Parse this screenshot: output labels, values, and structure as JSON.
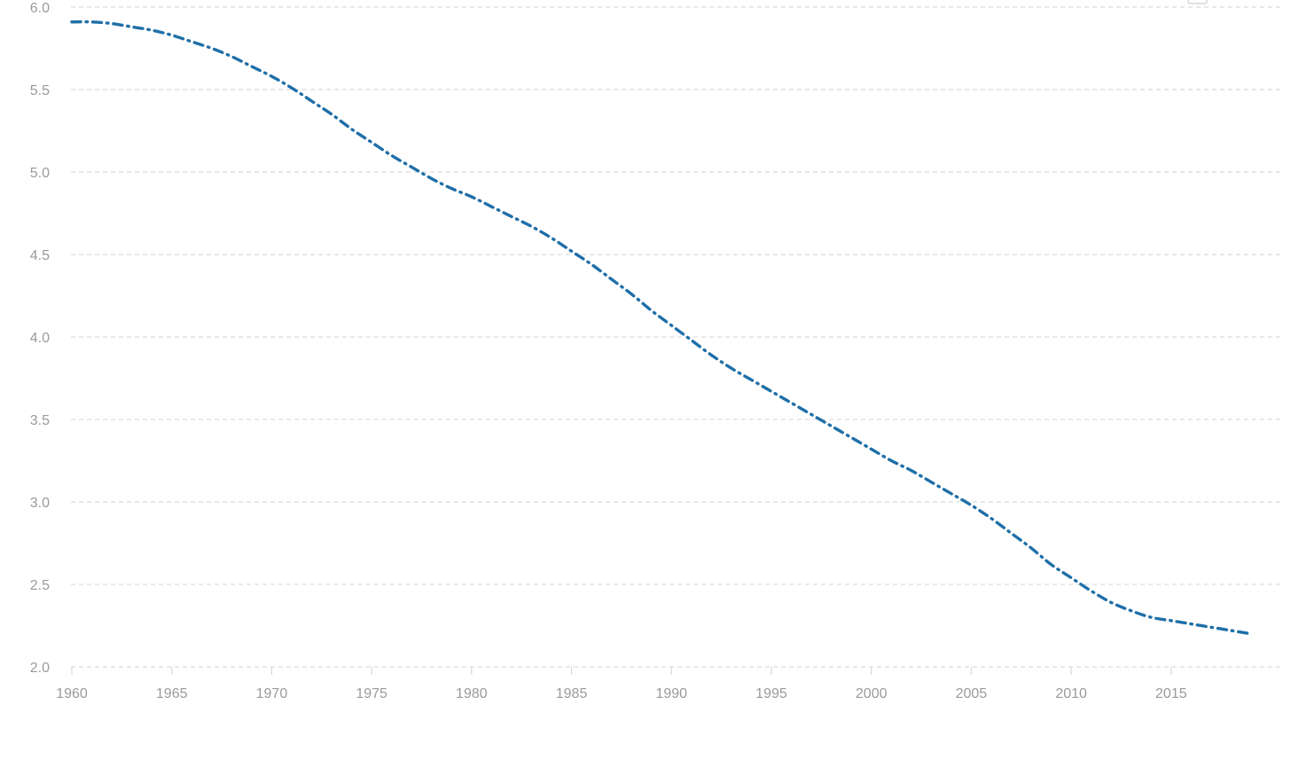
{
  "chart_data": {
    "type": "line",
    "title": "",
    "xlabel": "",
    "ylabel": "",
    "xlim": [
      1960,
      2020
    ],
    "ylim": [
      2.0,
      6.0
    ],
    "grid": true,
    "colors": {
      "series": "#1f6fa8",
      "grid": "#dcdcdc",
      "tick_label": "#9a9a9a"
    },
    "y_ticks": [
      "2.0",
      "2.5",
      "3.0",
      "3.5",
      "4.0",
      "4.5",
      "5.0",
      "5.5",
      "6.0"
    ],
    "x_ticks": [
      "1960",
      "1965",
      "1970",
      "1975",
      "1980",
      "1985",
      "1990",
      "1995",
      "2000",
      "2005",
      "2010",
      "2015"
    ],
    "series": [
      {
        "x": [
          1960,
          1961,
          1962,
          1963,
          1964,
          1965,
          1966,
          1967,
          1968,
          1969,
          1970,
          1971,
          1972,
          1973,
          1974,
          1975,
          1976,
          1977,
          1978,
          1979,
          1980,
          1981,
          1982,
          1983,
          1984,
          1985,
          1986,
          1987,
          1988,
          1989,
          1990,
          1991,
          1992,
          1993,
          1994,
          1995,
          1996,
          1997,
          1998,
          1999,
          2000,
          2001,
          2002,
          2003,
          2004,
          2005,
          2006,
          2007,
          2008,
          2009,
          2010,
          2011,
          2012,
          2013,
          2014,
          2015,
          2016,
          2017,
          2018,
          2019
        ],
        "values": [
          5.91,
          5.91,
          5.9,
          5.88,
          5.86,
          5.83,
          5.79,
          5.75,
          5.7,
          5.64,
          5.58,
          5.51,
          5.43,
          5.35,
          5.26,
          5.18,
          5.1,
          5.03,
          4.96,
          4.9,
          4.85,
          4.79,
          4.73,
          4.67,
          4.6,
          4.52,
          4.44,
          4.35,
          4.26,
          4.16,
          4.07,
          3.98,
          3.89,
          3.81,
          3.74,
          3.67,
          3.6,
          3.53,
          3.46,
          3.39,
          3.32,
          3.25,
          3.19,
          3.12,
          3.05,
          2.98,
          2.9,
          2.81,
          2.72,
          2.62,
          2.54,
          2.46,
          2.39,
          2.34,
          2.3,
          2.28,
          2.26,
          2.24,
          2.22,
          2.2
        ]
      }
    ]
  }
}
